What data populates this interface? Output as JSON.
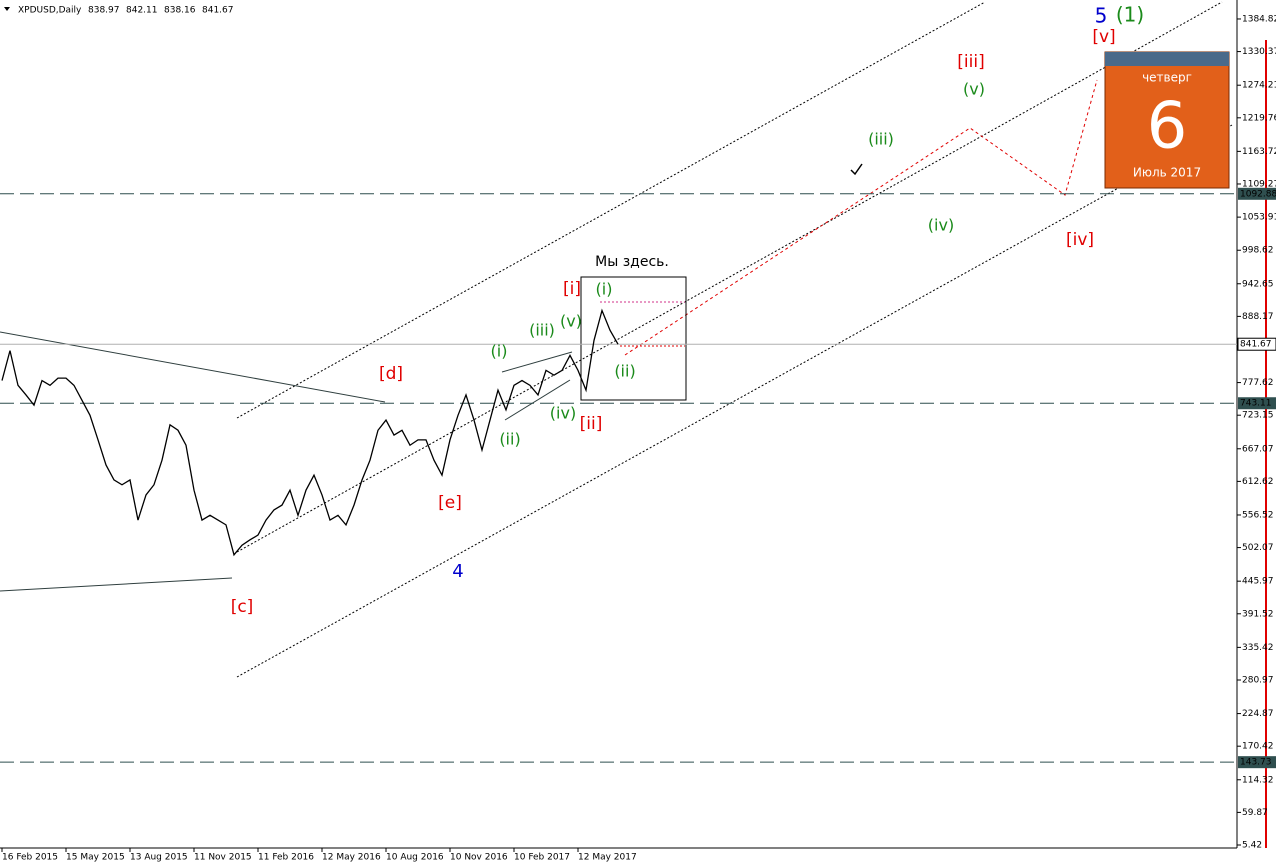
{
  "chart_data": {
    "type": "line",
    "title": "XPDUSD,Daily",
    "ohlc": [
      838.97,
      842.11,
      838.16,
      841.67
    ],
    "categories": [
      "16 Feb 2015",
      null,
      null,
      null,
      null,
      null,
      null,
      null,
      "15 May 2015",
      null,
      null,
      null,
      null,
      null,
      null,
      null,
      "13 Aug 2015",
      null,
      null,
      null,
      null,
      null,
      null,
      null,
      "11 Nov 2015",
      null,
      null,
      null,
      null,
      null,
      null,
      null,
      "11 Feb 2016",
      null,
      null,
      null,
      null,
      null,
      null,
      null,
      "12 May 2016",
      null,
      null,
      null,
      null,
      null,
      null,
      null,
      "10 Aug 2016",
      null,
      null,
      null,
      null,
      null,
      null,
      null,
      "10 Nov 2016",
      null,
      null,
      null,
      null,
      null,
      null,
      null,
      "10 Feb 2017",
      null,
      null,
      null,
      null,
      null,
      null,
      null,
      "12 May 2017",
      null,
      null,
      null,
      null,
      null
    ],
    "values": [
      781,
      831,
      773,
      757,
      740,
      781,
      773,
      785,
      785,
      773,
      748,
      723,
      682,
      640,
      615,
      607,
      615,
      548,
      590,
      607,
      648,
      707,
      698,
      673,
      598,
      548,
      556,
      548,
      540,
      490,
      506,
      515,
      523,
      548,
      565,
      573,
      598,
      556,
      598,
      623,
      590,
      548,
      556,
      540,
      573,
      615,
      648,
      698,
      715,
      690,
      698,
      673,
      682,
      682,
      648,
      623,
      682,
      723,
      757,
      715,
      665,
      715,
      765,
      732,
      773,
      781,
      773,
      757,
      798,
      790,
      798,
      823,
      798,
      765,
      848,
      898,
      865,
      841.67
    ],
    "color": "#000000",
    "ylim": [
      0.4,
      1416.5
    ],
    "yticks": [
      1384.82,
      1330.37,
      1274.21,
      1219.76,
      1163.72,
      1109.27,
      1053.91,
      998.62,
      942.65,
      888.17,
      777.62,
      723.15,
      667.07,
      612.62,
      556.52,
      502.07,
      445.97,
      391.52,
      335.42,
      280.97,
      224.87,
      170.42,
      114.32,
      59.87,
      5.42
    ],
    "levels": [
      1092.88,
      743.11,
      143.73
    ],
    "last_price": 841.67,
    "annotations": [
      {
        "text": "5",
        "color": "#0000cc"
      },
      {
        "text": "(1)",
        "color": "#1a8a1a"
      },
      {
        "text": "[v]",
        "color": "#e00000"
      },
      {
        "text": "[iii]",
        "color": "#e00000"
      },
      {
        "text": "(v)",
        "color": "#1a8a1a"
      },
      {
        "text": "(iii)",
        "color": "#1a8a1a"
      },
      {
        "text": "(iv)",
        "color": "#1a8a1a"
      },
      {
        "text": "[iv]",
        "color": "#e00000"
      },
      {
        "text": "Мы здесь.",
        "color": "#000000"
      },
      {
        "text": "[i]",
        "color": "#e00000"
      },
      {
        "text": "(i)",
        "color": "#1a8a1a"
      },
      {
        "text": "(v)",
        "color": "#1a8a1a"
      },
      {
        "text": "(iii)",
        "color": "#1a8a1a"
      },
      {
        "text": "(i)",
        "color": "#1a8a1a"
      },
      {
        "text": "[d]",
        "color": "#e00000"
      },
      {
        "text": "(ii)",
        "color": "#1a8a1a"
      },
      {
        "text": "(ii)",
        "color": "#1a8a1a"
      },
      {
        "text": "(iv)",
        "color": "#1a8a1a"
      },
      {
        "text": "[ii]",
        "color": "#e00000"
      },
      {
        "text": "[e]",
        "color": "#e00000"
      },
      {
        "text": "[c]",
        "color": "#e00000"
      },
      {
        "text": "4",
        "color": "#0000cc"
      }
    ]
  },
  "calendar": {
    "weekday": "четверг",
    "day": "6",
    "month_year": "Июль 2017"
  }
}
